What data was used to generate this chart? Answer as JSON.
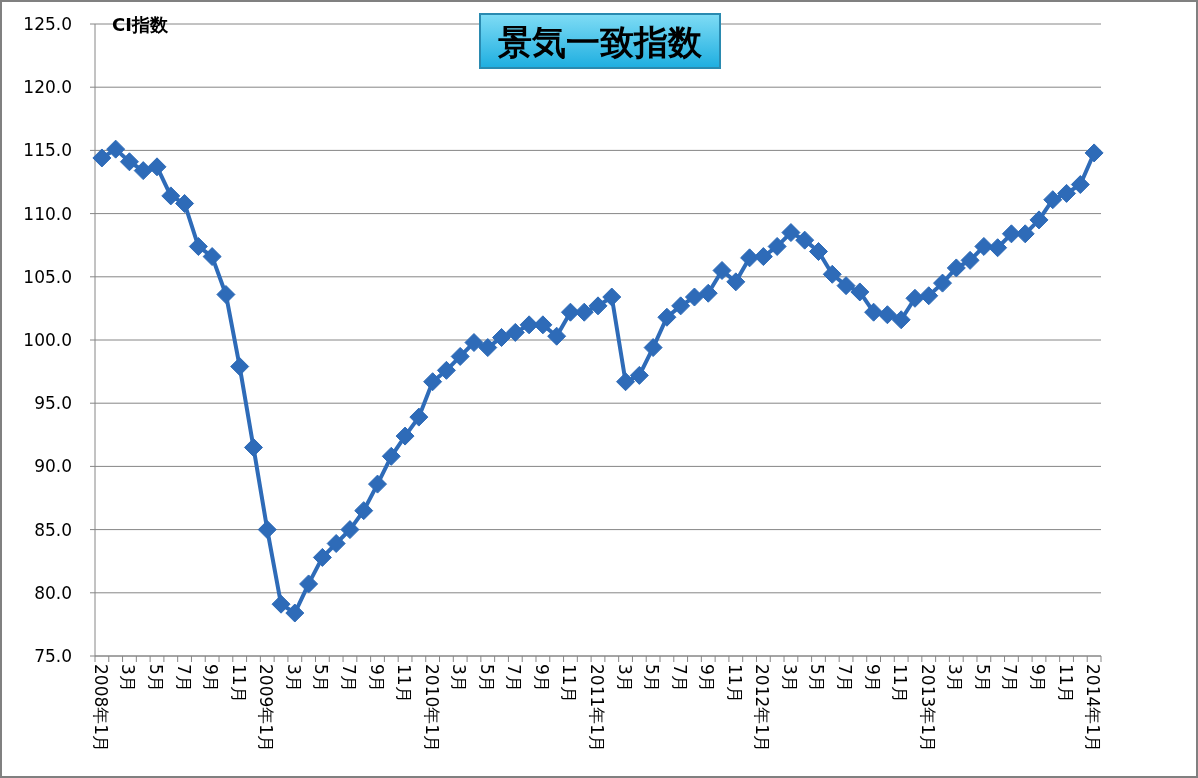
{
  "chart_data": {
    "type": "line",
    "title": "景気一致指数",
    "ylabel": "CI指数",
    "categories": [
      "2008年1月",
      null,
      "3月",
      null,
      "5月",
      null,
      "7月",
      null,
      "9月",
      null,
      "11月",
      null,
      "2009年1月",
      null,
      "3月",
      null,
      "5月",
      null,
      "7月",
      null,
      "9月",
      null,
      "11月",
      null,
      "2010年1月",
      null,
      "3月",
      null,
      "5月",
      null,
      "7月",
      null,
      "9月",
      null,
      "11月",
      null,
      "2011年1月",
      null,
      "3月",
      null,
      "5月",
      null,
      "7月",
      null,
      "9月",
      null,
      "11月",
      null,
      "2012年1月",
      null,
      "3月",
      null,
      "5月",
      null,
      "7月",
      null,
      "9月",
      null,
      "11月",
      null,
      "2013年1月",
      null,
      "3月",
      null,
      "5月",
      null,
      "7月",
      null,
      "9月",
      null,
      "11月",
      null,
      "2014年1月"
    ],
    "series": [
      {
        "color": "#2e6bb8",
        "values": [
          114.4,
          115.1,
          114.1,
          113.4,
          113.7,
          111.4,
          110.8,
          107.4,
          106.6,
          103.6,
          97.9,
          91.5,
          85.0,
          79.1,
          78.4,
          80.7,
          82.8,
          83.9,
          85.0,
          86.5,
          88.6,
          90.8,
          92.4,
          93.9,
          96.7,
          97.6,
          98.7,
          99.8,
          99.4,
          100.2,
          100.6,
          101.2,
          101.2,
          100.3,
          102.2,
          102.2,
          102.7,
          103.4,
          96.7,
          97.2,
          99.4,
          101.8,
          102.7,
          103.4,
          103.7,
          105.5,
          104.6,
          106.5,
          106.6,
          107.4,
          108.5,
          107.9,
          107.0,
          105.2,
          104.3,
          103.8,
          102.2,
          102.0,
          101.6,
          103.3,
          103.5,
          104.5,
          105.7,
          106.3,
          107.4,
          107.3,
          108.4,
          108.4,
          109.5,
          111.1,
          111.6,
          112.3,
          114.8
        ]
      }
    ],
    "ylim": [
      75,
      125
    ],
    "yticks": [
      {
        "value": 75,
        "label": "75.0"
      },
      {
        "value": 80,
        "label": "80.0"
      },
      {
        "value": 85,
        "label": "85.0"
      },
      {
        "value": 90,
        "label": "90.0"
      },
      {
        "value": 95,
        "label": "95.0"
      },
      {
        "value": 100,
        "label": "100.0"
      },
      {
        "value": 105,
        "label": "105.0"
      },
      {
        "value": 110,
        "label": "110.0"
      },
      {
        "value": 115,
        "label": "115.0"
      },
      {
        "value": 120,
        "label": "120.0"
      },
      {
        "value": 125,
        "label": "125.0"
      }
    ],
    "grid": "y",
    "marker": "diamond",
    "line_style": "solid"
  }
}
